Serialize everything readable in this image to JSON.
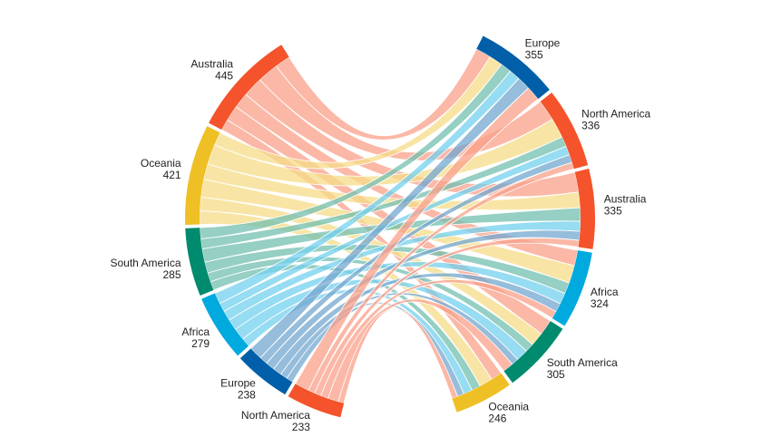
{
  "chart_data": {
    "type": "chord",
    "title": "",
    "left_nodes": [
      {
        "name": "Australia",
        "value": 445,
        "color": "#f4532b"
      },
      {
        "name": "Oceania",
        "value": 421,
        "color": "#efbf26"
      },
      {
        "name": "South America",
        "value": 285,
        "color": "#008a6e"
      },
      {
        "name": "Africa",
        "value": 279,
        "color": "#00a9de"
      },
      {
        "name": "Europe",
        "value": 238,
        "color": "#005fa8"
      },
      {
        "name": "North America",
        "value": 233,
        "color": "#f4532b"
      }
    ],
    "right_nodes": [
      {
        "name": "Europe",
        "value": 355,
        "color": "#005fa8"
      },
      {
        "name": "North America",
        "value": 336,
        "color": "#f4532b"
      },
      {
        "name": "Australia",
        "value": 335,
        "color": "#f4532b"
      },
      {
        "name": "Africa",
        "value": 324,
        "color": "#00a9de"
      },
      {
        "name": "South America",
        "value": 305,
        "color": "#008a6e"
      },
      {
        "name": "Oceania",
        "value": 246,
        "color": "#efbf26"
      }
    ],
    "links": [
      {
        "source": "Australia",
        "target": "Europe",
        "value": 70
      },
      {
        "source": "Australia",
        "target": "North America",
        "value": 95
      },
      {
        "source": "Australia",
        "target": "Australia",
        "value": 90
      },
      {
        "source": "Australia",
        "target": "Africa",
        "value": 70
      },
      {
        "source": "Australia",
        "target": "South America",
        "value": 70
      },
      {
        "source": "Australia",
        "target": "Oceania",
        "value": 50
      },
      {
        "source": "Oceania",
        "target": "Europe",
        "value": 60
      },
      {
        "source": "Oceania",
        "target": "North America",
        "value": 90
      },
      {
        "source": "Oceania",
        "target": "Australia",
        "value": 70
      },
      {
        "source": "Oceania",
        "target": "Africa",
        "value": 80
      },
      {
        "source": "Oceania",
        "target": "South America",
        "value": 61
      },
      {
        "source": "Oceania",
        "target": "Oceania",
        "value": 60
      },
      {
        "source": "South America",
        "target": "Europe",
        "value": 50
      },
      {
        "source": "South America",
        "target": "North America",
        "value": 45
      },
      {
        "source": "South America",
        "target": "Australia",
        "value": 60
      },
      {
        "source": "South America",
        "target": "Africa",
        "value": 50
      },
      {
        "source": "South America",
        "target": "South America",
        "value": 40
      },
      {
        "source": "South America",
        "target": "Oceania",
        "value": 40
      },
      {
        "source": "Africa",
        "target": "Europe",
        "value": 50
      },
      {
        "source": "Africa",
        "target": "North America",
        "value": 40
      },
      {
        "source": "Africa",
        "target": "Australia",
        "value": 45
      },
      {
        "source": "Africa",
        "target": "Africa",
        "value": 50
      },
      {
        "source": "Africa",
        "target": "South America",
        "value": 54
      },
      {
        "source": "Africa",
        "target": "Oceania",
        "value": 40
      },
      {
        "source": "Europe",
        "target": "Europe",
        "value": 60
      },
      {
        "source": "Europe",
        "target": "North America",
        "value": 36
      },
      {
        "source": "Europe",
        "target": "Australia",
        "value": 40
      },
      {
        "source": "Europe",
        "target": "Africa",
        "value": 40
      },
      {
        "source": "Europe",
        "target": "South America",
        "value": 32
      },
      {
        "source": "Europe",
        "target": "Oceania",
        "value": 30
      },
      {
        "source": "North America",
        "target": "Europe",
        "value": 65
      },
      {
        "source": "North America",
        "target": "North America",
        "value": 30
      },
      {
        "source": "North America",
        "target": "Australia",
        "value": 30
      },
      {
        "source": "North America",
        "target": "Africa",
        "value": 34
      },
      {
        "source": "North America",
        "target": "South America",
        "value": 48
      },
      {
        "source": "North America",
        "target": "Oceania",
        "value": 26
      }
    ]
  }
}
